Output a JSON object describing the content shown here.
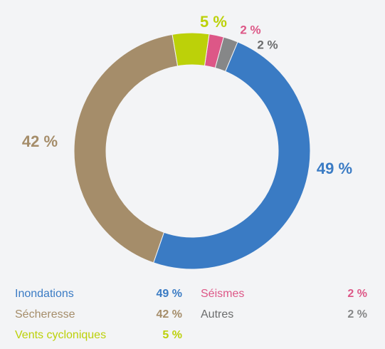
{
  "chart_data": {
    "type": "pie",
    "title": "",
    "series": [
      {
        "name": "Inondations",
        "value": 49,
        "label": "49 %",
        "color": "#3a7bc4"
      },
      {
        "name": "Sécheresse",
        "value": 42,
        "label": "42 %",
        "color": "#a58d6a"
      },
      {
        "name": "Vents cycloniques",
        "value": 5,
        "label": "5 %",
        "color": "#bcd109"
      },
      {
        "name": "Séismes",
        "value": 2,
        "label": "2 %",
        "color": "#dd5787"
      },
      {
        "name": "Autres",
        "value": 2,
        "label": "2 %",
        "color": "#868788"
      }
    ],
    "legend_position": "bottom"
  }
}
